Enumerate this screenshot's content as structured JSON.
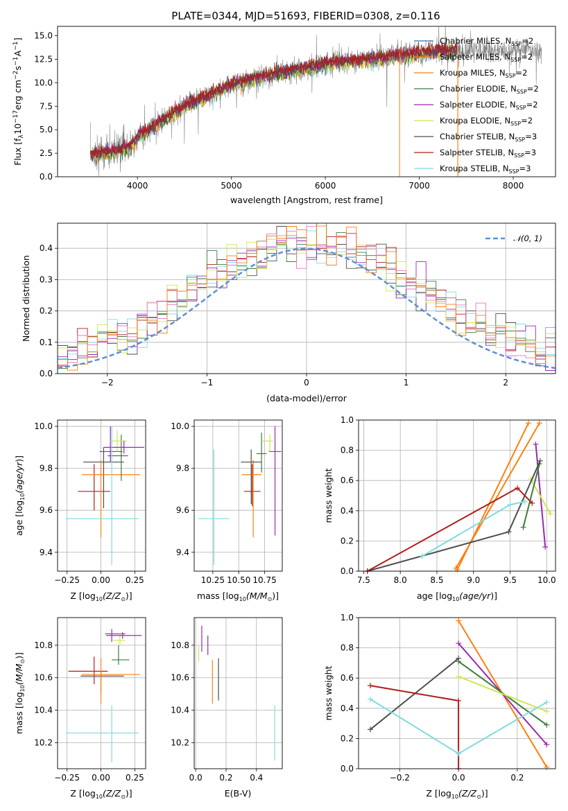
{
  "title": "PLATE=0344, MJD=51693, FIBERID=0308, z=0.116",
  "colors": {
    "chabrier_miles": "#1f77b4",
    "salpeter_miles": "#ff7f0e",
    "kroupa_miles": "#ff7f0e",
    "chabrier_elodie": "#3a7d3a",
    "salpeter_elodie": "#9b27b0",
    "kroupa_elodie": "#cde84a",
    "chabrier_stelib": "#4d4d4d",
    "salpeter_stelib": "#b01c1c",
    "kroupa_stelib": "#80dbe0",
    "gauss": "#5b8fd8",
    "data": "#808080",
    "grid": "#b0b0b0"
  },
  "legend_top": [
    "Chabrier MILES, N_SSP=2",
    "Salpeter MILES, N_SSP=2",
    "Kroupa MILES, N_SSP=2",
    "Chabrier ELODIE, N_SSP=2",
    "Salpeter ELODIE, N_SSP=2",
    "Kroupa ELODIE, N_SSP=2",
    "Chabrier STELIB, N_SSP=3",
    "Salpeter STELIB, N_SSP=3",
    "Kroupa STELIB, N_SSP=3"
  ],
  "legend_top_parts": [
    {
      "pre": "Chabrier MILES, N",
      "post": "=2"
    },
    {
      "pre": "Salpeter MILES, N",
      "post": "=2"
    },
    {
      "pre": "Kroupa MILES, N",
      "post": "=2"
    },
    {
      "pre": "Chabrier ELODIE, N",
      "post": "=2"
    },
    {
      "pre": "Salpeter ELODIE, N",
      "post": "=2"
    },
    {
      "pre": "Kroupa ELODIE, N",
      "post": "=2"
    },
    {
      "pre": "Chabrier STELIB, N",
      "post": "=3"
    },
    {
      "pre": "Salpeter STELIB, N",
      "post": "=3"
    },
    {
      "pre": "Kroupa STELIB, N",
      "post": "=3"
    }
  ],
  "legend_sub": "SSP",
  "legend_mid": "𝒩(0, 1)",
  "chart_data": [
    {
      "id": "spectrum",
      "type": "line",
      "xlabel": "wavelength [Angstrom, rest frame]",
      "ylabel": "Flux [f_λ 10^-17 erg cm^-2 s^-1 A^-1]",
      "xlim": [
        3150,
        8450
      ],
      "ylim": [
        0,
        16
      ],
      "xticks": [
        4000,
        5000,
        6000,
        7000,
        8000
      ],
      "yticks": [
        0.0,
        2.5,
        5.0,
        7.5,
        10.0,
        12.5,
        15.0
      ],
      "continuum": [
        [
          3500,
          2.3
        ],
        [
          3700,
          2.6
        ],
        [
          3900,
          3.0
        ],
        [
          4000,
          4.2
        ],
        [
          4200,
          5.5
        ],
        [
          4500,
          7.5
        ],
        [
          4800,
          8.8
        ],
        [
          5000,
          9.8
        ],
        [
          5200,
          10.3
        ],
        [
          5500,
          11.0
        ],
        [
          5800,
          11.5
        ],
        [
          6000,
          12.0
        ],
        [
          6300,
          12.3
        ],
        [
          6600,
          12.6
        ],
        [
          6800,
          12.9
        ],
        [
          7000,
          13.1
        ],
        [
          7200,
          13.3
        ],
        [
          7400,
          13.4
        ]
      ],
      "model_range": [
        3500,
        7400
      ],
      "data_range": [
        3500,
        8300
      ]
    },
    {
      "id": "residuals",
      "type": "line",
      "xlabel": "(data-model)/error",
      "ylabel": "Normed distribution",
      "xlim": [
        -2.5,
        2.5
      ],
      "ylim": [
        0,
        0.48
      ],
      "xticks": [
        -2,
        -1,
        0,
        1,
        2
      ],
      "yticks": [
        0.0,
        0.1,
        0.2,
        0.3,
        0.4
      ],
      "gaussian": {
        "mu": 0,
        "sigma": 1
      }
    },
    {
      "id": "age_vs_Z",
      "type": "scatter",
      "xlabel": "Z [log10(Z/Z⊙)]",
      "ylabel": "age [log10(age/yr)]",
      "xlim": [
        -0.32,
        0.33
      ],
      "ylim": [
        9.31,
        10.03
      ],
      "xticks": [
        -0.25,
        0.0,
        0.25
      ],
      "yticks": [
        9.4,
        9.6,
        9.8,
        10.0
      ],
      "points": [
        {
          "c": "salpeter_stelib",
          "x": -0.05,
          "xe": [
            0.12,
            0.12
          ],
          "y": 9.69,
          "ye": [
            0.09,
            0.13
          ]
        },
        {
          "c": "chabrier_stelib",
          "x": 0.02,
          "xe": [
            0.15,
            0.15
          ],
          "y": 9.83,
          "ye": [
            0.22,
            0.07
          ]
        },
        {
          "c": "kroupa_miles",
          "x": 0.0,
          "xe": [
            0.14,
            0.29
          ],
          "y": 9.77,
          "ye": [
            0.3,
            0.07
          ]
        },
        {
          "c": "chabrier_elodie",
          "x": 0.15,
          "xe": [
            0.1,
            0.05
          ],
          "y": 9.86,
          "ye": [
            0.12,
            0.1
          ]
        },
        {
          "c": "salpeter_elodie",
          "x": 0.07,
          "xe": [
            0.08,
            0.09
          ],
          "y": 9.88,
          "ye": [
            0.05,
            0.12
          ]
        },
        {
          "c": "kroupa_elodie",
          "x": 0.12,
          "xe": [
            0.05,
            0.07
          ],
          "y": 9.93,
          "ye": [
            0.05,
            0.05
          ]
        },
        {
          "c": "salpeter_elodie",
          "x": 0.17,
          "xe": [
            0.15,
            0.15
          ],
          "y": 9.9,
          "ye": [
            0.03,
            0.03
          ]
        },
        {
          "c": "kroupa_stelib",
          "x": 0.08,
          "xe": [
            0.34,
            0.2
          ],
          "y": 9.56,
          "ye": [
            0.22,
            0.44
          ]
        }
      ]
    },
    {
      "id": "age_vs_mass",
      "type": "scatter",
      "xlabel": "mass [log10(M/M⊙)]",
      "ylabel": "",
      "xlim": [
        10.07,
        10.92
      ],
      "ylim": [
        9.31,
        10.03
      ],
      "xticks": [
        10.25,
        10.5,
        10.75
      ],
      "yticks": [
        9.4,
        9.6,
        9.8,
        10.0
      ],
      "points": [
        {
          "c": "kroupa_stelib",
          "x": 10.26,
          "xe": [
            0.15,
            0.15
          ],
          "y": 9.56,
          "ye": [
            0.22,
            0.33
          ]
        },
        {
          "c": "salpeter_stelib",
          "x": 10.63,
          "xe": [
            0.08,
            0.08
          ],
          "y": 9.69,
          "ye": [
            0.07,
            0.13
          ]
        },
        {
          "c": "kroupa_miles",
          "x": 10.64,
          "xe": [
            0.11,
            0.08
          ],
          "y": 9.77,
          "ye": [
            0.3,
            0.07
          ]
        },
        {
          "c": "chabrier_stelib",
          "x": 10.62,
          "xe": [
            0.1,
            0.1
          ],
          "y": 9.83,
          "ye": [
            0.2,
            0.06
          ]
        },
        {
          "c": "chabrier_elodie",
          "x": 10.72,
          "xe": [
            0.05,
            0.05
          ],
          "y": 9.87,
          "ye": [
            0.09,
            0.1
          ]
        },
        {
          "c": "salpeter_elodie",
          "x": 10.85,
          "xe": [
            0.06,
            0.06
          ],
          "y": 9.88,
          "ye": [
            0.4,
            0.12
          ]
        },
        {
          "c": "kroupa_elodie",
          "x": 10.8,
          "xe": [
            0.08,
            0.03
          ],
          "y": 9.93,
          "ye": [
            0.05,
            0.03
          ]
        }
      ]
    },
    {
      "id": "weight_vs_age",
      "type": "line",
      "xlabel": "age [log10(age/yr)]",
      "ylabel": "mass weight",
      "xlim": [
        7.43,
        10.12
      ],
      "ylim": [
        0,
        1.0
      ],
      "xticks": [
        7.5,
        8.0,
        8.5,
        9.0,
        9.5,
        10.0
      ],
      "yticks": [
        0.0,
        0.2,
        0.4,
        0.6,
        0.8,
        1.0
      ],
      "series": [
        {
          "c": "salpeter_miles",
          "x": [
            8.78,
            9.75
          ],
          "y": [
            0.01,
            0.98
          ]
        },
        {
          "c": "kroupa_miles",
          "x": [
            8.76,
            9.9
          ],
          "y": [
            0.02,
            0.98
          ]
        },
        {
          "c": "salpeter_elodie",
          "x": [
            9.85,
            9.98
          ],
          "y": [
            0.84,
            0.16
          ]
        },
        {
          "c": "kroupa_elodie",
          "x": [
            9.78,
            10.05
          ],
          "y": [
            0.61,
            0.38
          ]
        },
        {
          "c": "chabrier_elodie",
          "x": [
            9.68,
            9.9
          ],
          "y": [
            0.29,
            0.71
          ]
        },
        {
          "c": "chabrier_stelib",
          "x": [
            7.55,
            9.48,
            9.91
          ],
          "y": [
            0.0,
            0.26,
            0.73
          ]
        },
        {
          "c": "salpeter_stelib",
          "x": [
            7.55,
            9.6,
            9.8
          ],
          "y": [
            0.0,
            0.55,
            0.45
          ]
        },
        {
          "c": "kroupa_stelib",
          "x": [
            8.3,
            9.5,
            9.7
          ],
          "y": [
            0.1,
            0.44,
            0.46
          ]
        }
      ]
    },
    {
      "id": "mass_vs_Z",
      "type": "scatter",
      "xlabel": "Z [log10(Z/Z⊙)]",
      "ylabel": "mass [log10(M/M⊙)]",
      "xlim": [
        -0.32,
        0.33
      ],
      "ylim": [
        10.04,
        10.97
      ],
      "xticks": [
        -0.25,
        0.0,
        0.25
      ],
      "yticks": [
        10.2,
        10.4,
        10.6,
        10.8
      ],
      "points": [
        {
          "c": "salpeter_stelib",
          "x": -0.05,
          "xe": [
            0.19,
            0.1
          ],
          "y": 10.64,
          "ye": [
            0.08,
            0.09
          ]
        },
        {
          "c": "chabrier_stelib",
          "x": 0.0,
          "xe": [
            0.15,
            0.17
          ],
          "y": 10.61,
          "ye": [
            0.1,
            0.04
          ]
        },
        {
          "c": "kroupa_miles",
          "x": 0.0,
          "xe": [
            0.14,
            0.29
          ],
          "y": 10.62,
          "ye": [
            0.18,
            0.1
          ]
        },
        {
          "c": "chabrier_elodie",
          "x": 0.13,
          "xe": [
            0.05,
            0.08
          ],
          "y": 10.71,
          "ye": [
            0.03,
            0.09
          ]
        },
        {
          "c": "salpeter_elodie",
          "x": 0.08,
          "xe": [
            0.05,
            0.1
          ],
          "y": 10.87,
          "ye": [
            0.05,
            0.03
          ]
        },
        {
          "c": "kroupa_elodie",
          "x": 0.14,
          "xe": [
            0.05,
            0.04
          ],
          "y": 10.83,
          "ye": [
            0.03,
            0.04
          ]
        },
        {
          "c": "salpeter_elodie",
          "x": 0.16,
          "xe": [
            0.12,
            0.14
          ],
          "y": 10.86,
          "ye": [
            0.02,
            0.02
          ]
        },
        {
          "c": "kroupa_stelib",
          "x": 0.08,
          "xe": [
            0.34,
            0.2
          ],
          "y": 10.26,
          "ye": [
            0.18,
            0.17
          ]
        }
      ]
    },
    {
      "id": "mass_vs_ebv",
      "type": "scatter",
      "xlabel": "E(B-V)",
      "ylabel": "",
      "xlim": [
        -0.01,
        0.57
      ],
      "ylim": [
        10.04,
        10.97
      ],
      "xticks": [
        0.0,
        0.2,
        0.4
      ],
      "yticks": [
        10.2,
        10.4,
        10.6,
        10.8
      ],
      "points": [
        {
          "c": "kroupa_elodie",
          "x": 0.02,
          "xe": [
            0,
            0
          ],
          "y": 10.75,
          "ye": [
            0.05,
            0.05
          ]
        },
        {
          "c": "salpeter_elodie",
          "x": 0.04,
          "xe": [
            0,
            0
          ],
          "y": 10.84,
          "ye": [
            0.08,
            0.08
          ]
        },
        {
          "c": "salpeter_elodie",
          "x": 0.08,
          "xe": [
            0,
            0
          ],
          "y": 10.8,
          "ye": [
            0.06,
            0.06
          ]
        },
        {
          "c": "kroupa_miles",
          "x": 0.11,
          "xe": [
            0,
            0
          ],
          "y": 10.58,
          "ye": [
            0.14,
            0.13
          ]
        },
        {
          "c": "chabrier_stelib",
          "x": 0.15,
          "xe": [
            0,
            0
          ],
          "y": 10.59,
          "ye": [
            0.13,
            0.13
          ]
        },
        {
          "c": "kroupa_stelib",
          "x": 0.52,
          "xe": [
            0,
            0
          ],
          "y": 10.26,
          "ye": [
            0.17,
            0.17
          ]
        }
      ]
    },
    {
      "id": "weight_vs_Z",
      "type": "line",
      "xlabel": "Z [log10(Z/Z⊙)]",
      "ylabel": "mass weight",
      "xlim": [
        -0.34,
        0.33
      ],
      "ylim": [
        0,
        1.0
      ],
      "xticks": [
        -0.2,
        0.0,
        0.2
      ],
      "yticks": [
        0.0,
        0.2,
        0.4,
        0.6,
        0.8,
        1.0
      ],
      "series": [
        {
          "c": "kroupa_miles",
          "x": [
            0.0,
            0.3
          ],
          "y": [
            0.98,
            0.01
          ]
        },
        {
          "c": "salpeter_elodie",
          "x": [
            0.0,
            0.3
          ],
          "y": [
            0.83,
            0.16
          ]
        },
        {
          "c": "chabrier_elodie",
          "x": [
            0.0,
            0.3
          ],
          "y": [
            0.71,
            0.29
          ]
        },
        {
          "c": "kroupa_elodie",
          "x": [
            0.0,
            0.3
          ],
          "y": [
            0.61,
            0.38
          ]
        },
        {
          "c": "chabrier_stelib",
          "x": [
            -0.3,
            0.0
          ],
          "y": [
            0.26,
            0.73
          ]
        },
        {
          "c": "salpeter_stelib",
          "x": [
            -0.3,
            0.0,
            0.0
          ],
          "y": [
            0.55,
            0.45,
            0.0
          ]
        },
        {
          "c": "kroupa_stelib",
          "x": [
            -0.3,
            0.0,
            0.3
          ],
          "y": [
            0.46,
            0.1,
            0.44
          ]
        }
      ]
    }
  ]
}
